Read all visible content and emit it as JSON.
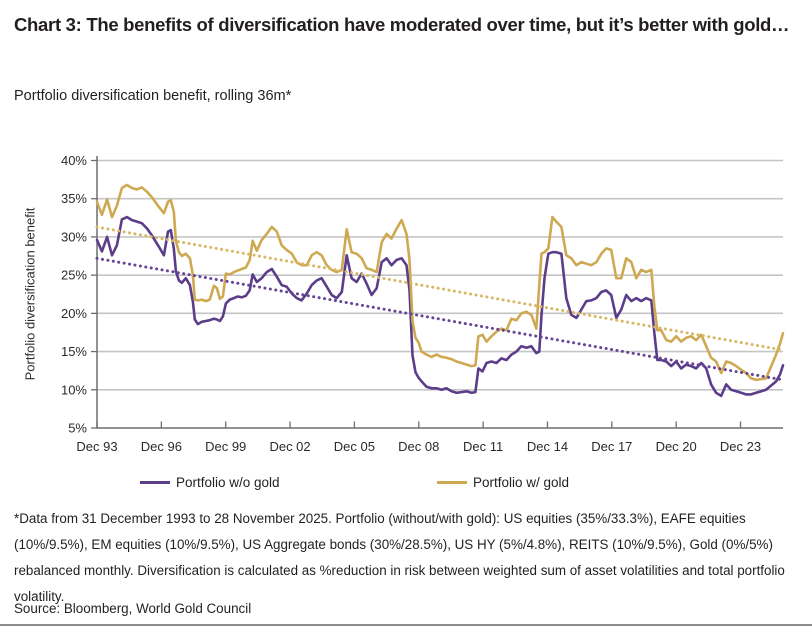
{
  "header": {
    "title": "Chart 3: The benefits of diversification have moderated over time, but it’s better with gold…",
    "subtitle": "Portfolio diversification benefit, rolling 36m*"
  },
  "legend": {
    "without_gold": "Portfolio w/o gold",
    "with_gold": "Portfolio w/ gold"
  },
  "footnote": "*Data from 31 December 1993 to 28 November 2025. Portfolio (without/with gold): US equities (35%/33.3%), EAFE equities (10%/9.5%), EM equities (10%/9.5%), US Aggregate bonds (30%/28.5%), US HY (5%/4.8%), REITS (10%/9.5%), Gold (0%/5%) rebalanced monthly. Diversification is calculated as %reduction in risk between weighted sum of asset volatilities and total portfolio volatility.",
  "source": "Source: Bloomberg, World Gold Council",
  "colors": {
    "purple": "#5b3d8a",
    "gold": "#cfa952",
    "purple_trend": "#654397",
    "gold_trend": "#d8b763",
    "gridline": "#c5c5c5",
    "axis": "#6e6e6e",
    "text": "#2b2b2b"
  },
  "chart_data": {
    "type": "line",
    "title": "Chart 3: The benefits of diversification have moderated over time, but it’s better with gold…",
    "subtitle": "Portfolio diversification benefit, rolling 36m*",
    "xlabel": "",
    "ylabel": "Portfolio diversification benefit",
    "ylim": [
      5,
      40
    ],
    "xlim": [
      1993.92,
      2025.9
    ],
    "grid": true,
    "legend_position": "bottom",
    "yticks": [
      5,
      10,
      15,
      20,
      25,
      30,
      35,
      40
    ],
    "ytick_suffix": "%",
    "xticks": [
      {
        "label": "Dec 93",
        "year": 1993.92
      },
      {
        "label": "Dec 96",
        "year": 1996.92
      },
      {
        "label": "Dec 99",
        "year": 1999.92
      },
      {
        "label": "Dec 02",
        "year": 2002.92
      },
      {
        "label": "Dec 05",
        "year": 2005.92
      },
      {
        "label": "Dec 08",
        "year": 2008.92
      },
      {
        "label": "Dec 11",
        "year": 2011.92
      },
      {
        "label": "Dec 14",
        "year": 2014.92
      },
      {
        "label": "Dec 17",
        "year": 2017.92
      },
      {
        "label": "Dec 20",
        "year": 2020.92
      },
      {
        "label": "Dec 23",
        "year": 2023.92
      }
    ],
    "x": [
      1993.92,
      1994.15,
      1994.39,
      1994.62,
      1994.85,
      1995.08,
      1995.32,
      1995.55,
      1995.78,
      1996.01,
      1996.25,
      1996.48,
      1996.81,
      1997.04,
      1997.23,
      1997.36,
      1997.5,
      1997.6,
      1997.74,
      1997.88,
      1998.06,
      1998.25,
      1998.39,
      1998.48,
      1998.62,
      1998.81,
      1998.99,
      1999.18,
      1999.37,
      1999.51,
      1999.65,
      1999.79,
      1999.93,
      2000.11,
      2000.3,
      2000.48,
      2000.67,
      2000.86,
      2001.04,
      2001.18,
      2001.37,
      2001.6,
      2001.83,
      2002.07,
      2002.3,
      2002.53,
      2002.76,
      2003.0,
      2003.23,
      2003.46,
      2003.7,
      2003.93,
      2004.16,
      2004.39,
      2004.63,
      2004.86,
      2005.09,
      2005.33,
      2005.56,
      2005.79,
      2006.02,
      2006.26,
      2006.49,
      2006.72,
      2006.96,
      2007.19,
      2007.42,
      2007.65,
      2007.89,
      2008.12,
      2008.35,
      2008.49,
      2008.63,
      2008.77,
      2008.91,
      2009.05,
      2009.28,
      2009.52,
      2009.75,
      2009.98,
      2010.21,
      2010.45,
      2010.68,
      2010.91,
      2011.15,
      2011.38,
      2011.56,
      2011.7,
      2011.89,
      2012.08,
      2012.31,
      2012.54,
      2012.77,
      2013.01,
      2013.24,
      2013.47,
      2013.7,
      2013.94,
      2014.17,
      2014.4,
      2014.54,
      2014.64,
      2014.78,
      2014.96,
      2015.15,
      2015.33,
      2015.57,
      2015.8,
      2016.03,
      2016.27,
      2016.5,
      2016.73,
      2016.96,
      2017.2,
      2017.43,
      2017.66,
      2017.89,
      2018.13,
      2018.36,
      2018.59,
      2018.83,
      2019.06,
      2019.29,
      2019.52,
      2019.76,
      2019.9,
      2020.04,
      2020.22,
      2020.46,
      2020.69,
      2020.92,
      2021.15,
      2021.39,
      2021.62,
      2021.85,
      2022.09,
      2022.32,
      2022.55,
      2022.78,
      2023.02,
      2023.25,
      2023.48,
      2023.72,
      2023.95,
      2024.18,
      2024.41,
      2024.65,
      2025.11,
      2025.58,
      2025.76,
      2025.9
    ],
    "series": [
      {
        "name": "Portfolio w/o gold",
        "color": "#5b3d8a",
        "values": [
          29.6,
          28.1,
          30.0,
          27.6,
          28.9,
          32.3,
          32.6,
          32.2,
          32.0,
          31.8,
          31.1,
          30.2,
          28.7,
          27.6,
          30.7,
          30.9,
          28.5,
          25.5,
          24.3,
          24.0,
          24.6,
          23.7,
          21.5,
          19.2,
          18.6,
          18.9,
          19.0,
          19.1,
          19.3,
          19.2,
          19.0,
          19.6,
          21.3,
          21.8,
          22.0,
          22.2,
          22.1,
          22.3,
          23.0,
          25.1,
          24.1,
          24.6,
          25.4,
          25.8,
          24.8,
          23.7,
          23.5,
          22.6,
          22.0,
          21.7,
          22.6,
          23.7,
          24.3,
          24.6,
          23.5,
          22.4,
          22.0,
          22.8,
          27.6,
          24.6,
          24.1,
          25.2,
          23.9,
          22.4,
          23.3,
          26.7,
          27.2,
          26.3,
          27.0,
          27.2,
          26.3,
          23.0,
          14.5,
          12.3,
          11.6,
          11.1,
          10.4,
          10.2,
          10.2,
          10.0,
          10.2,
          9.8,
          9.6,
          9.7,
          9.8,
          9.6,
          9.7,
          12.8,
          12.4,
          13.5,
          13.7,
          13.5,
          14.1,
          13.9,
          14.6,
          15.0,
          15.7,
          15.5,
          15.7,
          14.8,
          15.0,
          19.8,
          24.6,
          27.8,
          28.0,
          28.0,
          27.8,
          22.0,
          19.8,
          19.4,
          20.5,
          21.6,
          21.7,
          22.0,
          22.8,
          23.0,
          22.4,
          19.4,
          20.5,
          22.4,
          21.6,
          22.0,
          21.6,
          22.0,
          21.7,
          17.5,
          13.9,
          13.9,
          13.7,
          13.1,
          13.7,
          12.8,
          13.3,
          13.1,
          12.8,
          13.5,
          12.8,
          10.7,
          9.6,
          9.2,
          10.7,
          10.0,
          9.8,
          9.6,
          9.4,
          9.4,
          9.6,
          10.0,
          11.1,
          12.0,
          13.2
        ]
      },
      {
        "name": "Portfolio w/ gold",
        "color": "#cfa952",
        "values": [
          34.6,
          32.9,
          34.9,
          32.6,
          34.1,
          36.4,
          36.8,
          36.4,
          36.2,
          36.5,
          35.9,
          35.2,
          33.9,
          33.1,
          34.6,
          34.8,
          33.3,
          29.5,
          28.0,
          27.5,
          27.8,
          27.2,
          25.0,
          21.8,
          21.7,
          21.8,
          21.6,
          21.8,
          23.6,
          23.3,
          21.9,
          22.2,
          25.2,
          25.1,
          25.4,
          25.6,
          25.8,
          26.0,
          27.0,
          29.5,
          28.2,
          29.6,
          30.4,
          31.3,
          30.7,
          28.9,
          28.3,
          27.8,
          26.7,
          26.3,
          26.3,
          27.6,
          28.0,
          27.6,
          26.3,
          25.7,
          25.4,
          25.7,
          31.0,
          28.0,
          27.8,
          27.2,
          25.9,
          25.7,
          25.4,
          29.3,
          30.4,
          29.8,
          31.1,
          32.2,
          30.4,
          27.0,
          19.0,
          16.8,
          16.2,
          15.0,
          14.6,
          14.3,
          14.6,
          14.3,
          14.2,
          14.0,
          13.7,
          13.5,
          13.3,
          13.1,
          13.2,
          17.0,
          17.2,
          16.3,
          17.0,
          17.6,
          18.0,
          17.8,
          19.3,
          19.1,
          20.0,
          20.2,
          19.8,
          18.0,
          23.7,
          27.8,
          28.0,
          28.5,
          32.6,
          32.0,
          31.3,
          27.6,
          27.2,
          26.3,
          26.7,
          26.5,
          26.3,
          26.7,
          27.8,
          28.5,
          28.3,
          24.6,
          24.6,
          27.2,
          26.7,
          24.6,
          25.7,
          25.4,
          25.7,
          21.0,
          17.8,
          17.8,
          16.5,
          16.3,
          17.0,
          16.3,
          16.8,
          17.0,
          16.5,
          17.2,
          15.7,
          14.2,
          13.7,
          12.2,
          13.7,
          13.5,
          13.1,
          12.6,
          12.2,
          11.5,
          11.3,
          11.5,
          14.6,
          16.0,
          17.4
        ]
      }
    ],
    "trendlines": [
      {
        "name": "Portfolio w/o gold trend",
        "style": "dotted",
        "color": "#654397",
        "start": [
          1993.92,
          27.2
        ],
        "end": [
          2025.9,
          11.3
        ]
      },
      {
        "name": "Portfolio w/ gold trend",
        "style": "dotted",
        "color": "#d8b763",
        "start": [
          1993.92,
          31.3
        ],
        "end": [
          2025.9,
          15.2
        ]
      }
    ]
  }
}
